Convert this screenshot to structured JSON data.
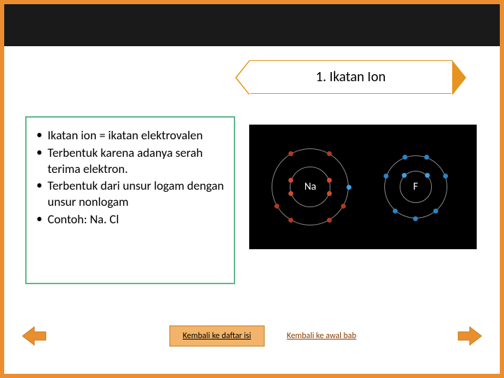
{
  "colors": {
    "frame_border": "#ec8e2f",
    "top_band": "#1a1a1a",
    "title_border": "#e6941f",
    "box_border": "#5fb88b",
    "diagram_bg": "#000000",
    "btn_bg": "#f2b36a",
    "btn_border": "#c77f1f",
    "link_color": "#8a3b00",
    "arrow_fill": "#e98f2f",
    "electron_na_inner": "#d64a2a",
    "electron_na_outer": "#b23a1f",
    "electron_na_valence": "#3aa0e8",
    "electron_f_inner": "#3aa0e8",
    "electron_f_outer": "#2a84c8"
  },
  "title": "1. Ikatan Ion",
  "bullets": [
    "Ikatan ion = ikatan elektrovalen",
    "Terbentuk karena adanya serah terima elektron.",
    "Terbentuk dari unsur logam dengan unsur nonlogam",
    "Contoh: Na. Cl"
  ],
  "diagram": {
    "atoms": [
      {
        "label": "Na",
        "inner_electrons": [
          {
            "angle": 20
          },
          {
            "angle": 160
          },
          {
            "angle": 200
          },
          {
            "angle": 340
          }
        ],
        "outer_electrons": [
          {
            "angle": 60
          },
          {
            "angle": 120
          },
          {
            "angle": 210
          },
          {
            "angle": 240
          },
          {
            "angle": 300
          },
          {
            "angle": 330
          }
        ],
        "valence": [
          {
            "angle": 0
          }
        ],
        "inner_color_key": "electron_na_inner",
        "outer_color_key": "electron_na_outer",
        "valence_color_key": "electron_na_valence",
        "inner_r": 29,
        "outer_r": 55
      },
      {
        "label": "F",
        "class": "atom-f",
        "inner_electrons": [
          {
            "angle": 45
          },
          {
            "angle": 135
          }
        ],
        "outer_electrons": [
          {
            "angle": 20
          },
          {
            "angle": 70
          },
          {
            "angle": 110
          },
          {
            "angle": 160
          },
          {
            "angle": 230
          },
          {
            "angle": 270
          },
          {
            "angle": 310
          }
        ],
        "inner_color_key": "electron_f_inner",
        "outer_color_key": "electron_f_outer",
        "inner_r": 23,
        "outer_r": 45
      }
    ]
  },
  "nav": {
    "back_toc": "Kembali ke daftar isi",
    "back_chapter": "Kembali ke awal bab"
  }
}
